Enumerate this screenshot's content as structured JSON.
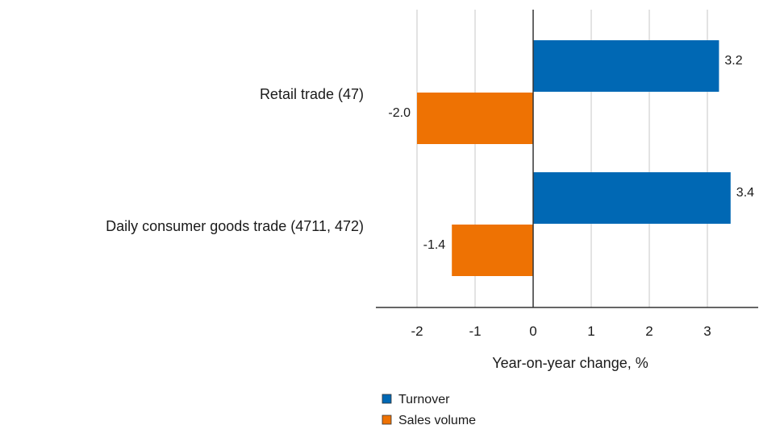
{
  "chart_data": {
    "type": "bar",
    "orientation": "horizontal",
    "categories": [
      "Retail trade (47)",
      "Daily consumer goods trade (4711, 472)"
    ],
    "series": [
      {
        "name": "Turnover",
        "values": [
          3.2,
          3.4
        ],
        "color": "#0068b4"
      },
      {
        "name": "Sales volume",
        "values": [
          -2.0,
          -1.4
        ],
        "color": "#ee7203"
      }
    ],
    "xlabel": "Year-on-year change, %",
    "xlim": [
      -2.7,
      3.8
    ],
    "xticks": [
      -2,
      -1,
      0,
      1,
      2,
      3
    ],
    "grid": true,
    "legend": "bottom",
    "data_labels": [
      "3.2",
      "-2.0",
      "3.4",
      "-1.4"
    ]
  }
}
